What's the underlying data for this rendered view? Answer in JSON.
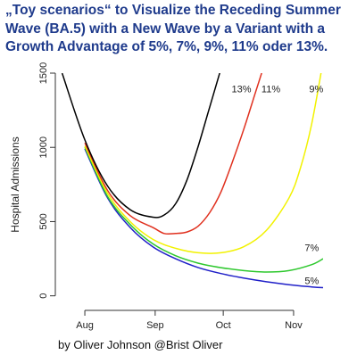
{
  "title_lines": [
    "„Toy scenarios“ to Visualize the Receding Summer",
    "Wave (BA.5) with a New Wave by a Variant with a",
    "Growth Advantage of 5%, 7%, 9%, 11% oder 13%."
  ],
  "credit": "by Oliver Johnson @Brist Oliver",
  "chart_data": {
    "type": "line",
    "title": "„Toy scenarios“ to Visualize the Receding Summer Wave (BA.5) with a New Wave by a Variant with a Growth Advantage of 5%, 7%, 9%, 11% oder 13%.",
    "xlabel": "",
    "ylabel": "Hospital Admissions",
    "xlim": [
      -13,
      105
    ],
    "ylim": [
      -50,
      1500
    ],
    "grid": false,
    "x_ticks": [
      {
        "value": 0,
        "label": "Aug"
      },
      {
        "value": 31,
        "label": "Sep"
      },
      {
        "value": 61,
        "label": "Oct"
      },
      {
        "value": 92,
        "label": "Nov"
      }
    ],
    "y_ticks": [
      {
        "value": 0,
        "label": "0"
      },
      {
        "value": 500,
        "label": "500"
      },
      {
        "value": 1000,
        "label": "1000"
      },
      {
        "value": 1500,
        "label": "1500"
      }
    ],
    "x_unit": "days from 1 Aug",
    "series": [
      {
        "name": "13%",
        "color": "#000000",
        "x": [
          -10,
          0,
          10,
          20,
          30,
          35,
          40,
          45,
          50,
          55,
          60,
          65
        ],
        "y": [
          1500,
          1050,
          740,
          580,
          530,
          545,
          620,
          780,
          1010,
          1270,
          1530,
          1800
        ]
      },
      {
        "name": "11%",
        "color": "#e0301e",
        "x": [
          0,
          10,
          20,
          30,
          35,
          40,
          45,
          50,
          55,
          60,
          65,
          70,
          75,
          80
        ],
        "y": [
          1030,
          710,
          540,
          460,
          420,
          420,
          430,
          470,
          560,
          700,
          900,
          1120,
          1360,
          1600
        ]
      },
      {
        "name": "9%",
        "color": "#f2f200",
        "x": [
          0,
          10,
          20,
          30,
          40,
          50,
          60,
          70,
          80,
          90,
          95,
          100,
          105
        ],
        "y": [
          1010,
          690,
          500,
          380,
          320,
          290,
          290,
          330,
          440,
          660,
          860,
          1160,
          1580
        ]
      },
      {
        "name": "7%",
        "color": "#2ec82e",
        "x": [
          0,
          10,
          20,
          30,
          40,
          50,
          60,
          70,
          80,
          90,
          100,
          105
        ],
        "y": [
          1000,
          670,
          480,
          350,
          270,
          220,
          190,
          170,
          160,
          170,
          210,
          250
        ]
      },
      {
        "name": "5%",
        "color": "#2020c8",
        "x": [
          0,
          10,
          20,
          30,
          40,
          50,
          60,
          70,
          80,
          90,
          100,
          105
        ],
        "y": [
          990,
          660,
          460,
          330,
          250,
          190,
          150,
          120,
          95,
          75,
          60,
          55
        ]
      }
    ],
    "annotations": [
      {
        "text": "13%",
        "x": 69,
        "y": 1370
      },
      {
        "text": "11%",
        "x": 82,
        "y": 1370
      },
      {
        "text": "9%",
        "x": 102,
        "y": 1370
      },
      {
        "text": "7%",
        "x": 100,
        "y": 300
      },
      {
        "text": "5%",
        "x": 100,
        "y": 80
      }
    ]
  }
}
